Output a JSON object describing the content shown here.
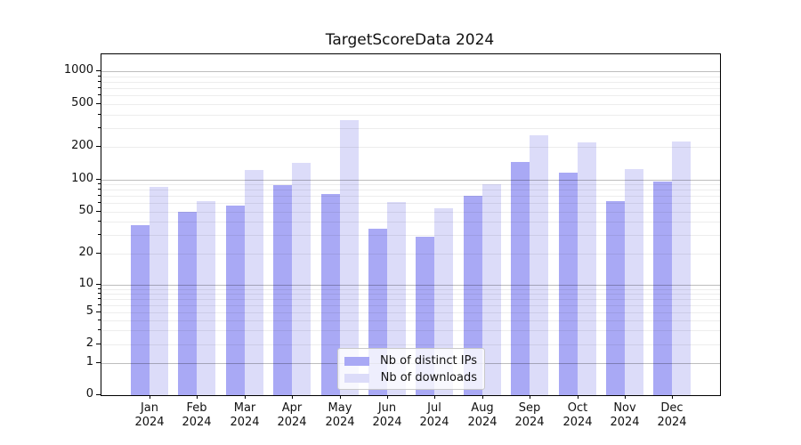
{
  "chart_data": {
    "type": "bar",
    "title": "TargetScoreData 2024",
    "categories": [
      "Jan 2024",
      "Feb 2024",
      "Mar 2024",
      "Apr 2024",
      "May 2024",
      "Jun 2024",
      "Jul 2024",
      "Aug 2024",
      "Sep 2024",
      "Oct 2024",
      "Nov 2024",
      "Dec 2024"
    ],
    "series": [
      {
        "name": "Nb of distinct IPs",
        "color": "#a9a9f5",
        "values": [
          37,
          50,
          57,
          88,
          73,
          34,
          29,
          70,
          146,
          115,
          63,
          95
        ]
      },
      {
        "name": "Nb of downloads",
        "color": "#dcdcf9",
        "values": [
          85,
          62,
          122,
          142,
          358,
          61,
          54,
          90,
          255,
          222,
          125,
          224
        ]
      }
    ],
    "y_axis": {
      "scale": "log (0 baseline shown)",
      "tick_values": [
        0,
        1,
        2,
        5,
        10,
        20,
        50,
        100,
        200,
        500,
        1000
      ],
      "tick_labels": [
        "0",
        "1",
        "2",
        "5",
        "10",
        "20",
        "50",
        "100",
        "200",
        "500",
        "1000"
      ],
      "minor_gridline_values": [
        3,
        4,
        6,
        7,
        8,
        9,
        30,
        40,
        60,
        70,
        80,
        90,
        300,
        400,
        600,
        700,
        800,
        900
      ],
      "ylim": [
        0,
        1400
      ]
    },
    "x_axis": {
      "tick_labels": [
        "Jan 2024",
        "Feb 2024",
        "Mar 2024",
        "Apr 2024",
        "May 2024",
        "Jun 2024",
        "Jul 2024",
        "Aug 2024",
        "Sep 2024",
        "Oct 2024",
        "Nov 2024",
        "Dec 2024"
      ]
    },
    "legend": {
      "position": "inside lower-center",
      "entries": [
        "Nb of distinct IPs",
        "Nb of downloads"
      ]
    },
    "grid": "on"
  }
}
